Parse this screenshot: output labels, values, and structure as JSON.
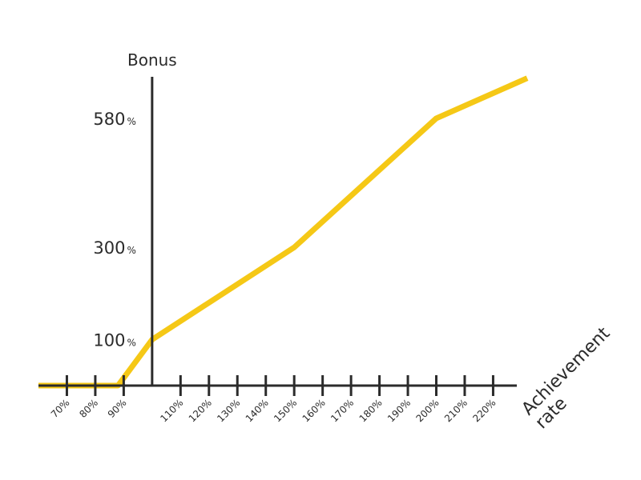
{
  "chart_data": {
    "type": "line",
    "ylabel": "Bonus",
    "xlabel": [
      "Achievement",
      "rate"
    ],
    "x_tick_labels": [
      "70%",
      "80%",
      "90%",
      "110%",
      "120%",
      "130%",
      "140%",
      "150%",
      "160%",
      "170%",
      "180%",
      "190%",
      "200%",
      "210%",
      "220%"
    ],
    "x_ticks": [
      70,
      80,
      90,
      110,
      120,
      130,
      140,
      150,
      160,
      170,
      180,
      190,
      200,
      210,
      220
    ],
    "y_ticks": [
      {
        "value": 100,
        "number": "100",
        "unit": "%"
      },
      {
        "value": 300,
        "number": "300",
        "unit": "%"
      },
      {
        "value": 580,
        "number": "580",
        "unit": "%"
      }
    ],
    "xlim": [
      60,
      232
    ],
    "ylim": [
      0,
      670
    ],
    "series": [
      {
        "x": [
          60,
          88,
          100,
          150,
          200,
          232
        ],
        "y": [
          0,
          0,
          100,
          300,
          580,
          667
        ]
      }
    ],
    "colors": {
      "line": "#f5c816",
      "axis": "#2b2b2b"
    }
  }
}
